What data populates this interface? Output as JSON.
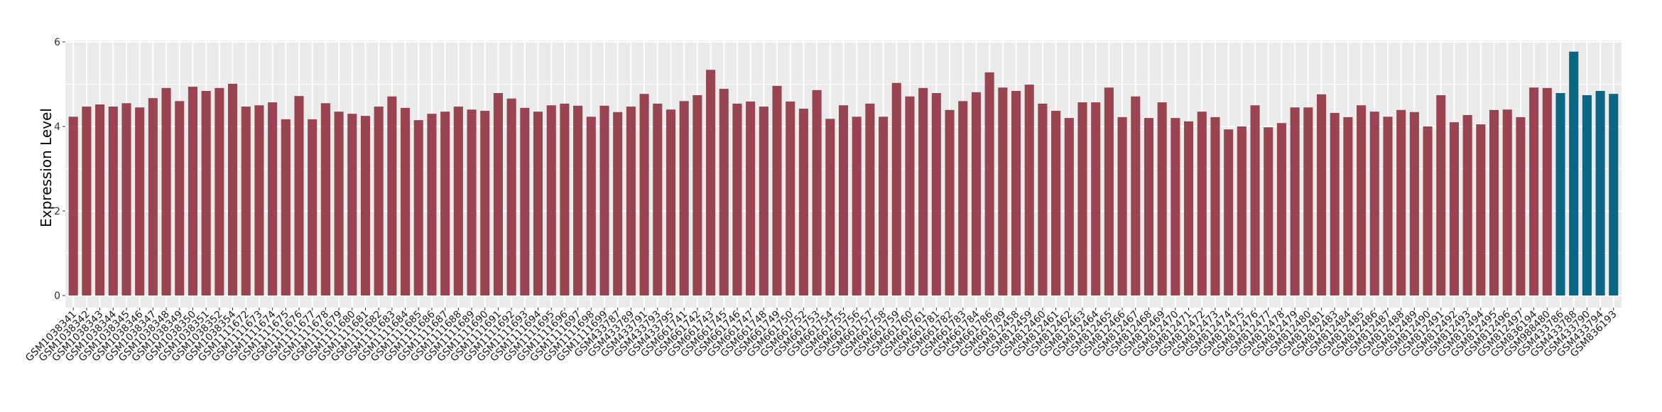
{
  "chart_data": {
    "type": "bar",
    "title": "",
    "xlabel": "",
    "ylabel": "Expression Level",
    "ylim": [
      0,
      6
    ],
    "yticks": [
      0,
      2,
      4,
      6
    ],
    "grid": true,
    "legend": "none",
    "colors": {
      "default": "#9a4452",
      "highlight": "#0b6686",
      "panel": "#ebebeb",
      "grid": "#ffffff"
    },
    "highlighted": [
      "GSM433786",
      "GSM433788",
      "GSM433790",
      "GSM433794",
      "GSM836193"
    ],
    "categories": [
      "GSM1038341",
      "GSM1038342",
      "GSM1038343",
      "GSM1038344",
      "GSM1038345",
      "GSM1038346",
      "GSM1038347",
      "GSM1038348",
      "GSM1038349",
      "GSM1038350",
      "GSM1038351",
      "GSM1038352",
      "GSM1038354",
      "GSM1111672",
      "GSM1111673",
      "GSM1111674",
      "GSM1111675",
      "GSM1111676",
      "GSM1111677",
      "GSM1111678",
      "GSM1111679",
      "GSM1111680",
      "GSM1111681",
      "GSM1111682",
      "GSM1111683",
      "GSM1111684",
      "GSM1111685",
      "GSM1111686",
      "GSM1111687",
      "GSM1111688",
      "GSM1111689",
      "GSM1111690",
      "GSM1111691",
      "GSM1111692",
      "GSM1111693",
      "GSM1111694",
      "GSM1111695",
      "GSM1111696",
      "GSM1111697",
      "GSM1111698",
      "GSM1111699",
      "GSM433787",
      "GSM433789",
      "GSM433791",
      "GSM433793",
      "GSM433795",
      "GSM661741",
      "GSM661742",
      "GSM661743",
      "GSM661745",
      "GSM661746",
      "GSM661747",
      "GSM661748",
      "GSM661749",
      "GSM661750",
      "GSM661752",
      "GSM661753",
      "GSM661754",
      "GSM661755",
      "GSM661756",
      "GSM661757",
      "GSM661758",
      "GSM661759",
      "GSM661760",
      "GSM661761",
      "GSM661781",
      "GSM661782",
      "GSM661783",
      "GSM661784",
      "GSM661786",
      "GSM661789",
      "GSM812458",
      "GSM812459",
      "GSM812460",
      "GSM812461",
      "GSM812462",
      "GSM812463",
      "GSM812464",
      "GSM812465",
      "GSM812466",
      "GSM812467",
      "GSM812468",
      "GSM812469",
      "GSM812470",
      "GSM812471",
      "GSM812472",
      "GSM812473",
      "GSM812474",
      "GSM812475",
      "GSM812476",
      "GSM812477",
      "GSM812478",
      "GSM812479",
      "GSM812480",
      "GSM812481",
      "GSM812483",
      "GSM812484",
      "GSM812485",
      "GSM812486",
      "GSM812487",
      "GSM812488",
      "GSM812489",
      "GSM812490",
      "GSM812491",
      "GSM812492",
      "GSM812493",
      "GSM812494",
      "GSM812495",
      "GSM812496",
      "GSM812497",
      "GSM836194",
      "GSM988480",
      "GSM433786",
      "GSM433788",
      "GSM433790",
      "GSM433794",
      "GSM836193"
    ],
    "values": [
      4.23,
      4.47,
      4.52,
      4.47,
      4.55,
      4.45,
      4.67,
      4.91,
      4.6,
      4.94,
      4.84,
      4.91,
      5.01,
      4.47,
      4.5,
      4.57,
      4.17,
      4.72,
      4.17,
      4.55,
      4.35,
      4.3,
      4.25,
      4.47,
      4.71,
      4.44,
      4.15,
      4.3,
      4.35,
      4.47,
      4.4,
      4.37,
      4.79,
      4.66,
      4.44,
      4.35,
      4.5,
      4.54,
      4.49,
      4.23,
      4.49,
      4.34,
      4.47,
      4.77,
      4.54,
      4.4,
      4.6,
      4.74,
      5.34,
      4.89,
      4.54,
      4.59,
      4.47,
      4.96,
      4.59,
      4.42,
      4.86,
      4.18,
      4.5,
      4.23,
      4.54,
      4.23,
      5.03,
      4.71,
      4.91,
      4.79,
      4.39,
      4.6,
      4.81,
      5.28,
      4.92,
      4.84,
      4.99,
      4.54,
      4.37,
      4.2,
      4.57,
      4.57,
      4.92,
      4.22,
      4.71,
      4.2,
      4.57,
      4.2,
      4.12,
      4.35,
      4.22,
      3.93,
      4.0,
      4.5,
      3.98,
      4.08,
      4.45,
      4.45,
      4.76,
      4.32,
      4.22,
      4.5,
      4.35,
      4.23,
      4.39,
      4.34,
      4.0,
      4.74,
      4.1,
      4.27,
      4.05,
      4.39,
      4.4,
      4.22,
      4.92,
      4.91,
      4.79,
      5.77,
      4.74,
      4.84,
      4.77
    ]
  }
}
